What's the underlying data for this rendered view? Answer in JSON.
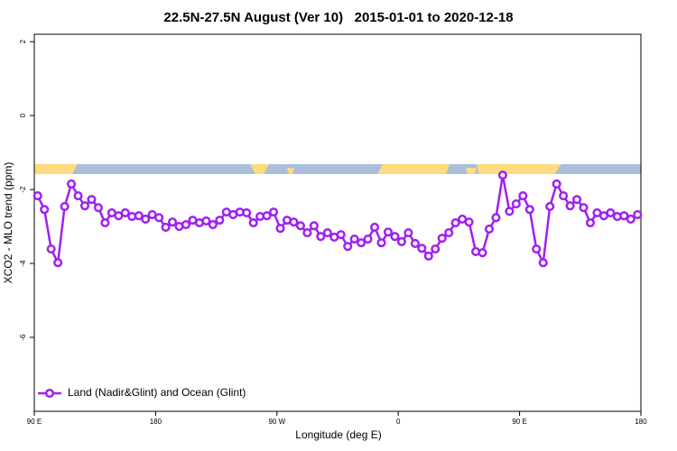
{
  "chart_data": {
    "type": "line",
    "title": "22.5N-27.5N August (Ver 10)   2015-01-01 to 2020-12-18",
    "x_label": "Longitude (deg E)",
    "y_label": "XCO2 - MLO trend (ppm)",
    "x": [
      92.5,
      97.5,
      102.5,
      107.5,
      112.5,
      117.5,
      122.5,
      127.5,
      132.5,
      137.5,
      142.5,
      147.5,
      152.5,
      157.5,
      162.5,
      167.5,
      172.5,
      177.5,
      182.5,
      187.5,
      192.5,
      197.5,
      202.5,
      207.5,
      212.5,
      217.5,
      222.5,
      227.5,
      232.5,
      237.5,
      242.5,
      247.5,
      252.5,
      257.5,
      262.5,
      267.5,
      272.5,
      277.5,
      282.5,
      287.5,
      292.5,
      297.5,
      302.5,
      307.5,
      312.5,
      317.5,
      322.5,
      327.5,
      332.5,
      337.5,
      342.5,
      347.5,
      352.5,
      357.5,
      362.5,
      367.5,
      372.5,
      377.5,
      382.5,
      387.5,
      392.5,
      397.5,
      402.5,
      407.5,
      412.5,
      417.5,
      422.5,
      427.5,
      432.5,
      437.5,
      442.5,
      447.5,
      452.5,
      457.5,
      462.5,
      467.5,
      472.5,
      477.5,
      482.5,
      487.5,
      492.5,
      497.5,
      502.5,
      507.5,
      512.5,
      517.5,
      522.5,
      527.5,
      532.5,
      537.5
    ],
    "series": [
      {
        "name": "Land (Nadir&Glint) and Ocean (Glint)",
        "color": "#a020f0",
        "values": [
          -2.17,
          -2.54,
          -3.61,
          -3.98,
          -2.46,
          -1.85,
          -2.17,
          -2.44,
          -2.27,
          -2.49,
          -2.9,
          -2.63,
          -2.71,
          -2.63,
          -2.73,
          -2.71,
          -2.8,
          -2.68,
          -2.76,
          -3.02,
          -2.88,
          -3.0,
          -2.95,
          -2.83,
          -2.9,
          -2.85,
          -2.95,
          -2.83,
          -2.61,
          -2.68,
          -2.61,
          -2.63,
          -2.9,
          -2.73,
          -2.71,
          -2.61,
          -3.05,
          -2.83,
          -2.88,
          -2.98,
          -3.17,
          -2.98,
          -3.27,
          -3.17,
          -3.29,
          -3.22,
          -3.54,
          -3.34,
          -3.44,
          -3.34,
          -3.02,
          -3.44,
          -3.15,
          -3.27,
          -3.41,
          -3.17,
          -3.46,
          -3.59,
          -3.8,
          -3.61,
          -3.32,
          -3.17,
          -2.9,
          -2.8,
          -2.88,
          -3.68,
          -3.71,
          -3.07,
          -2.76,
          -1.61,
          -2.59,
          -2.39,
          -2.17,
          -2.54,
          -3.61,
          -3.98,
          -2.46,
          -1.85,
          -2.17,
          -2.44,
          -2.27,
          -2.49,
          -2.9,
          -2.63,
          -2.71,
          -2.63,
          -2.73,
          -2.71,
          -2.8,
          -2.68
        ]
      }
    ],
    "xlim": [
      90,
      540
    ],
    "xticks": [
      {
        "value": 90,
        "label": "90 E"
      },
      180,
      {
        "value": 270,
        "label": "90 W"
      },
      {
        "value": 360,
        "label": "0"
      },
      {
        "value": 450,
        "label": "90 E"
      },
      {
        "value": 540,
        "label": "180"
      }
    ],
    "ylim": [
      -8,
      2.2
    ],
    "yticks": [
      2,
      0,
      -2,
      -4,
      -6
    ],
    "legend": "bottom-left",
    "grid": false
  }
}
